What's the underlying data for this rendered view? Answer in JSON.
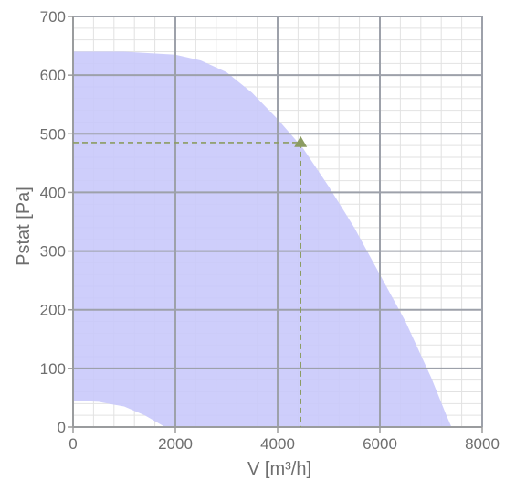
{
  "colors": {
    "background": "#ffffff",
    "grid_major": "#9da1aa",
    "grid_minor": "#e2e2e2",
    "axis": "#9a9a9a",
    "operating_area": "#c9c9fb",
    "operating_point": "#8c9c62",
    "tick_text": "#6e6e6e"
  },
  "chart_data": {
    "type": "area",
    "xlabel": "V [m³/h]",
    "ylabel": "Pstat [Pa]",
    "xlim": [
      0,
      8000
    ],
    "ylim": [
      0,
      700
    ],
    "x_ticks": [
      0,
      2000,
      4000,
      6000,
      8000
    ],
    "y_ticks": [
      0,
      100,
      200,
      300,
      400,
      500,
      600,
      700
    ],
    "x_tick_labels": [
      "0",
      "2000",
      "4000",
      "6000",
      "8000"
    ],
    "y_tick_labels": [
      "0",
      "100",
      "200",
      "300",
      "400",
      "500",
      "600",
      "700"
    ],
    "grid": true,
    "minor_grid": true,
    "series": [
      {
        "role": "operating-range-upper-boundary",
        "x": [
          0,
          1000,
          2000,
          2500,
          3000,
          3500,
          4000,
          4500,
          5000,
          5500,
          6000,
          6500,
          7000,
          7300,
          7400
        ],
        "y": [
          640,
          640,
          635,
          625,
          605,
          570,
          525,
          475,
          410,
          340,
          260,
          180,
          85,
          20,
          0
        ]
      },
      {
        "role": "operating-range-lower-boundary",
        "x": [
          0,
          500,
          1000,
          1400,
          1700,
          1800
        ],
        "y": [
          45,
          43,
          35,
          20,
          5,
          0
        ]
      }
    ],
    "operating_point": {
      "x": 4450,
      "y": 485,
      "marker": "triangle",
      "guide_lines": "dashed"
    }
  }
}
